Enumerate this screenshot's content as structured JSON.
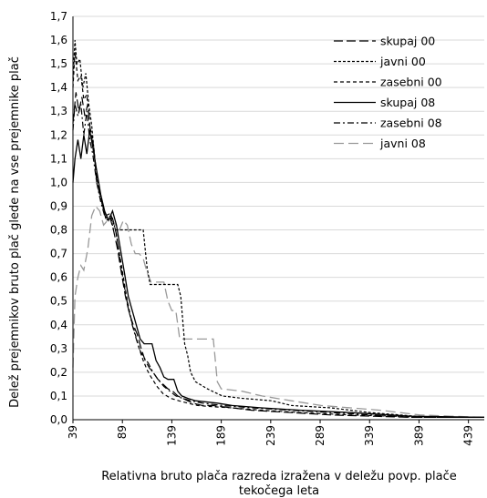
{
  "chart_data": {
    "type": "line",
    "xlabel": [
      "Relativna bruto plača razreda izražena v deležu povp. plače",
      "tekočega leta"
    ],
    "ylabel": "Delež prejemnikov bruto plač glede na vse prejemnike plač",
    "xlim": [
      39,
      455
    ],
    "ylim": [
      0,
      1.7
    ],
    "yticks": [
      "0,0",
      "0,1",
      "0,2",
      "0,3",
      "0,4",
      "0,5",
      "0,6",
      "0,7",
      "0,8",
      "0,9",
      "1,0",
      "1,1",
      "1,2",
      "1,3",
      "1,4",
      "1,5",
      "1,6",
      "1,7"
    ],
    "xticks": [
      "39",
      "89",
      "139",
      "189",
      "239",
      "289",
      "339",
      "389",
      "439"
    ],
    "grid": "horizontal",
    "legend_position": "top-right",
    "series": [
      {
        "name": "skupaj 00",
        "color": "#000000",
        "dash": "10,4",
        "width": 1.2,
        "points": [
          [
            39,
            1.25
          ],
          [
            42,
            1.38
          ],
          [
            45,
            1.3
          ],
          [
            48,
            1.36
          ],
          [
            51,
            1.28
          ],
          [
            54,
            1.33
          ],
          [
            57,
            1.2
          ],
          [
            60,
            1.15
          ],
          [
            63,
            1.0
          ],
          [
            68,
            0.92
          ],
          [
            72,
            0.85
          ],
          [
            76,
            0.86
          ],
          [
            80,
            0.8
          ],
          [
            84,
            0.72
          ],
          [
            88,
            0.62
          ],
          [
            92,
            0.52
          ],
          [
            96,
            0.45
          ],
          [
            100,
            0.4
          ],
          [
            104,
            0.36
          ],
          [
            108,
            0.3
          ],
          [
            112,
            0.25
          ],
          [
            116,
            0.22
          ],
          [
            120,
            0.2
          ],
          [
            125,
            0.17
          ],
          [
            130,
            0.15
          ],
          [
            135,
            0.13
          ],
          [
            140,
            0.12
          ],
          [
            145,
            0.1
          ],
          [
            150,
            0.09
          ],
          [
            155,
            0.08
          ],
          [
            160,
            0.07
          ],
          [
            170,
            0.06
          ],
          [
            180,
            0.06
          ],
          [
            200,
            0.05
          ],
          [
            220,
            0.04
          ],
          [
            260,
            0.03
          ],
          [
            300,
            0.02
          ],
          [
            340,
            0.015
          ],
          [
            380,
            0.01
          ],
          [
            455,
            0.01
          ]
        ]
      },
      {
        "name": "javni 00",
        "color": "#000000",
        "dash": "3,2",
        "width": 1.2,
        "points": [
          [
            39,
            1.44
          ],
          [
            41,
            1.6
          ],
          [
            43,
            1.5
          ],
          [
            46,
            1.52
          ],
          [
            49,
            1.4
          ],
          [
            52,
            1.46
          ],
          [
            55,
            1.33
          ],
          [
            58,
            1.24
          ],
          [
            61,
            1.1
          ],
          [
            65,
            0.98
          ],
          [
            69,
            0.9
          ],
          [
            73,
            0.84
          ],
          [
            77,
            0.86
          ],
          [
            80,
            0.8
          ],
          [
            110,
            0.8
          ],
          [
            114,
            0.64
          ],
          [
            117,
            0.57
          ],
          [
            145,
            0.57
          ],
          [
            148,
            0.52
          ],
          [
            152,
            0.32
          ],
          [
            155,
            0.27
          ],
          [
            158,
            0.2
          ],
          [
            163,
            0.16
          ],
          [
            175,
            0.13
          ],
          [
            190,
            0.1
          ],
          [
            210,
            0.09
          ],
          [
            240,
            0.08
          ],
          [
            260,
            0.06
          ],
          [
            300,
            0.05
          ],
          [
            340,
            0.03
          ],
          [
            370,
            0.02
          ],
          [
            400,
            0.01
          ],
          [
            455,
            0.01
          ]
        ]
      },
      {
        "name": "zasebni 00",
        "color": "#000000",
        "dash": "4,3",
        "width": 1.2,
        "points": [
          [
            39,
            1.4
          ],
          [
            41,
            1.55
          ],
          [
            44,
            1.43
          ],
          [
            47,
            1.45
          ],
          [
            50,
            1.35
          ],
          [
            53,
            1.37
          ],
          [
            56,
            1.24
          ],
          [
            59,
            1.18
          ],
          [
            63,
            1.03
          ],
          [
            68,
            0.93
          ],
          [
            72,
            0.86
          ],
          [
            77,
            0.87
          ],
          [
            82,
            0.8
          ],
          [
            86,
            0.7
          ],
          [
            90,
            0.6
          ],
          [
            94,
            0.5
          ],
          [
            98,
            0.42
          ],
          [
            102,
            0.36
          ],
          [
            106,
            0.3
          ],
          [
            110,
            0.25
          ],
          [
            114,
            0.21
          ],
          [
            118,
            0.18
          ],
          [
            124,
            0.14
          ],
          [
            130,
            0.11
          ],
          [
            138,
            0.09
          ],
          [
            146,
            0.08
          ],
          [
            155,
            0.07
          ],
          [
            165,
            0.06
          ],
          [
            180,
            0.055
          ],
          [
            200,
            0.05
          ],
          [
            230,
            0.04
          ],
          [
            270,
            0.03
          ],
          [
            320,
            0.02
          ],
          [
            360,
            0.015
          ],
          [
            400,
            0.01
          ],
          [
            455,
            0.01
          ]
        ]
      },
      {
        "name": "skupaj 08",
        "color": "#000000",
        "dash": "",
        "width": 1.3,
        "points": [
          [
            39,
            1.0
          ],
          [
            41,
            1.1
          ],
          [
            44,
            1.18
          ],
          [
            47,
            1.1
          ],
          [
            50,
            1.2
          ],
          [
            53,
            1.12
          ],
          [
            56,
            1.22
          ],
          [
            59,
            1.15
          ],
          [
            63,
            1.05
          ],
          [
            67,
            0.95
          ],
          [
            71,
            0.88
          ],
          [
            75,
            0.84
          ],
          [
            79,
            0.88
          ],
          [
            83,
            0.82
          ],
          [
            87,
            0.72
          ],
          [
            91,
            0.62
          ],
          [
            95,
            0.52
          ],
          [
            99,
            0.46
          ],
          [
            103,
            0.4
          ],
          [
            107,
            0.34
          ],
          [
            111,
            0.32
          ],
          [
            119,
            0.32
          ],
          [
            123,
            0.25
          ],
          [
            127,
            0.22
          ],
          [
            131,
            0.18
          ],
          [
            135,
            0.17
          ],
          [
            141,
            0.17
          ],
          [
            145,
            0.12
          ],
          [
            149,
            0.1
          ],
          [
            155,
            0.09
          ],
          [
            163,
            0.08
          ],
          [
            185,
            0.07
          ],
          [
            200,
            0.06
          ],
          [
            230,
            0.05
          ],
          [
            270,
            0.04
          ],
          [
            320,
            0.03
          ],
          [
            360,
            0.02
          ],
          [
            380,
            0.015
          ],
          [
            455,
            0.01
          ]
        ]
      },
      {
        "name": "zasebni 08",
        "color": "#000000",
        "dash": "7,3,2,3",
        "width": 1.2,
        "points": [
          [
            39,
            1.22
          ],
          [
            41,
            1.33
          ],
          [
            44,
            1.28
          ],
          [
            47,
            1.33
          ],
          [
            50,
            1.2
          ],
          [
            53,
            1.3
          ],
          [
            56,
            1.18
          ],
          [
            59,
            1.12
          ],
          [
            63,
            1.0
          ],
          [
            67,
            0.92
          ],
          [
            71,
            0.86
          ],
          [
            75,
            0.85
          ],
          [
            79,
            0.85
          ],
          [
            83,
            0.78
          ],
          [
            87,
            0.66
          ],
          [
            91,
            0.56
          ],
          [
            95,
            0.47
          ],
          [
            99,
            0.4
          ],
          [
            103,
            0.34
          ],
          [
            107,
            0.29
          ],
          [
            111,
            0.26
          ],
          [
            115,
            0.24
          ],
          [
            120,
            0.2
          ],
          [
            125,
            0.17
          ],
          [
            131,
            0.14
          ],
          [
            137,
            0.12
          ],
          [
            143,
            0.1
          ],
          [
            150,
            0.09
          ],
          [
            158,
            0.08
          ],
          [
            170,
            0.07
          ],
          [
            190,
            0.06
          ],
          [
            220,
            0.05
          ],
          [
            260,
            0.04
          ],
          [
            300,
            0.03
          ],
          [
            340,
            0.02
          ],
          [
            380,
            0.01
          ],
          [
            455,
            0.01
          ]
        ]
      },
      {
        "name": "javni 08",
        "color": "#999999",
        "dash": "11,5",
        "width": 1.3,
        "points": [
          [
            39,
            0.22
          ],
          [
            41,
            0.52
          ],
          [
            44,
            0.6
          ],
          [
            47,
            0.65
          ],
          [
            50,
            0.63
          ],
          [
            54,
            0.72
          ],
          [
            58,
            0.86
          ],
          [
            62,
            0.9
          ],
          [
            66,
            0.88
          ],
          [
            70,
            0.82
          ],
          [
            74,
            0.84
          ],
          [
            78,
            0.85
          ],
          [
            82,
            0.82
          ],
          [
            86,
            0.8
          ],
          [
            90,
            0.84
          ],
          [
            94,
            0.82
          ],
          [
            98,
            0.74
          ],
          [
            102,
            0.7
          ],
          [
            106,
            0.7
          ],
          [
            110,
            0.68
          ],
          [
            114,
            0.62
          ],
          [
            118,
            0.58
          ],
          [
            131,
            0.58
          ],
          [
            135,
            0.5
          ],
          [
            139,
            0.46
          ],
          [
            143,
            0.46
          ],
          [
            147,
            0.34
          ],
          [
            151,
            0.34
          ],
          [
            181,
            0.34
          ],
          [
            185,
            0.16
          ],
          [
            189,
            0.13
          ],
          [
            210,
            0.12
          ],
          [
            230,
            0.1
          ],
          [
            260,
            0.08
          ],
          [
            290,
            0.06
          ],
          [
            320,
            0.05
          ],
          [
            350,
            0.04
          ],
          [
            390,
            0.02
          ],
          [
            420,
            0.015
          ],
          [
            455,
            0.01
          ]
        ]
      }
    ]
  }
}
